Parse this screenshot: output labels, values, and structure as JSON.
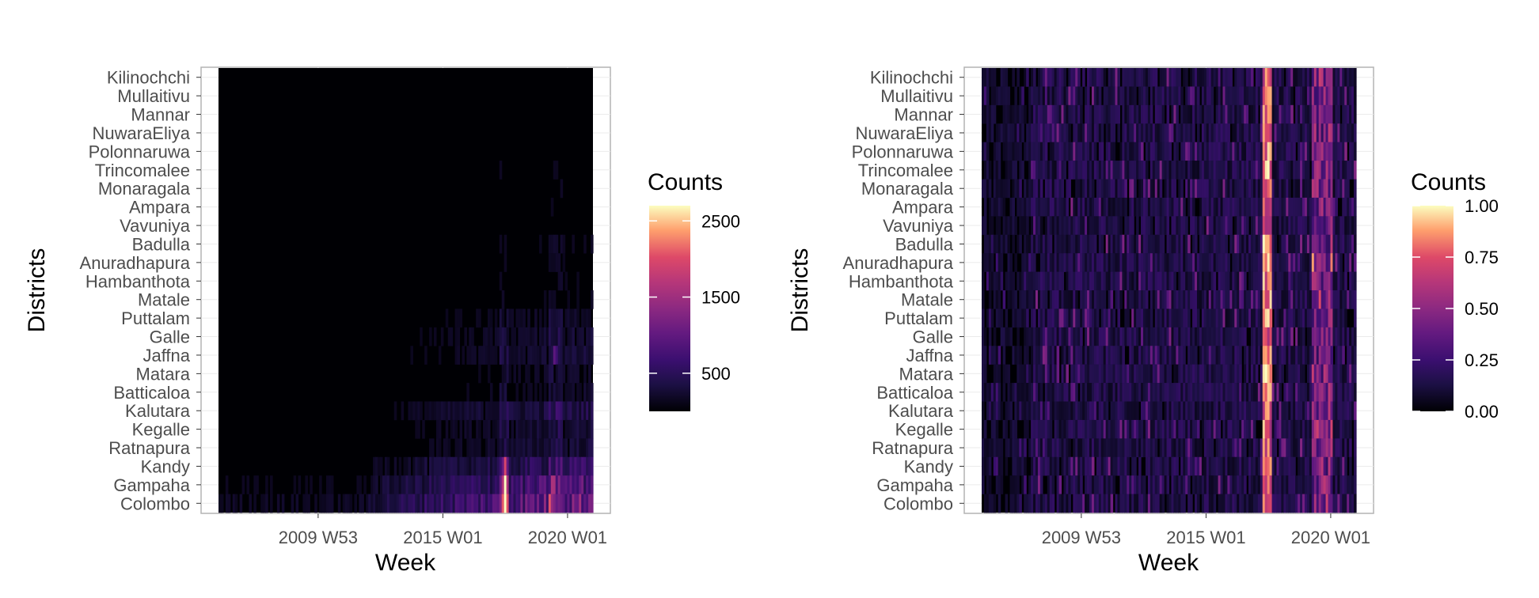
{
  "chart_data": [
    {
      "type": "heatmap",
      "xlabel": "Week",
      "ylabel": "Districts",
      "x_ticks": [
        "2009 W53",
        "2015 W01",
        "2020 W01"
      ],
      "x_range": [
        "2006 W01",
        "2021 W02"
      ],
      "y_categories_top_to_bottom": [
        "Kilinochchi",
        "Mullaitivu",
        "Mannar",
        "NuwaraEliya",
        "Polonnaruwa",
        "Trincomalee",
        "Monaragala",
        "Ampara",
        "Vavuniya",
        "Badulla",
        "Anuradhapura",
        "Hambanthota",
        "Matale",
        "Puttalam",
        "Galle",
        "Jaffna",
        "Matara",
        "Batticaloa",
        "Kalutara",
        "Kegalle",
        "Ratnapura",
        "Kandy",
        "Gampaha",
        "Colombo"
      ],
      "legend": {
        "title": "Counts",
        "range": [
          0,
          2700
        ],
        "ticks": [
          {
            "value": 500,
            "label": "500"
          },
          {
            "value": 1500,
            "label": "1500"
          },
          {
            "value": 2500,
            "label": "2500"
          }
        ]
      },
      "values": {
        "base_by_district_top_to_bottom": [
          5,
          5,
          8,
          12,
          10,
          20,
          18,
          15,
          14,
          25,
          22,
          22,
          25,
          40,
          50,
          55,
          40,
          40,
          80,
          60,
          60,
          120,
          180,
          250
        ],
        "hotspots": [
          {
            "week": "2017 W27",
            "district": "Colombo",
            "value": 2400
          },
          {
            "week": "2017 W27",
            "district": "Gampaha",
            "value": 1900
          },
          {
            "week": "2017 W27",
            "district": "Kandy",
            "value": 1100
          },
          {
            "week": "2019 W27",
            "district": "Colombo",
            "value": 900
          },
          {
            "week": "2019 W27",
            "district": "Jaffna",
            "value": 700
          },
          {
            "week": "2014 W27",
            "district": "Colombo",
            "value": 550
          }
        ]
      },
      "grid": true
    },
    {
      "type": "heatmap",
      "xlabel": "Week",
      "ylabel": "Districts",
      "x_ticks": [
        "2009 W53",
        "2015 W01",
        "2020 W01"
      ],
      "x_range": [
        "2006 W01",
        "2021 W02"
      ],
      "y_categories_top_to_bottom": [
        "Kilinochchi",
        "Mullaitivu",
        "Mannar",
        "NuwaraEliya",
        "Polonnaruwa",
        "Trincomalee",
        "Monaragala",
        "Ampara",
        "Vavuniya",
        "Badulla",
        "Anuradhapura",
        "Hambanthota",
        "Matale",
        "Puttalam",
        "Galle",
        "Jaffna",
        "Matara",
        "Batticaloa",
        "Kalutara",
        "Kegalle",
        "Ratnapura",
        "Kandy",
        "Gampaha",
        "Colombo"
      ],
      "legend": {
        "title": "Counts",
        "range": [
          0,
          1
        ],
        "ticks": [
          {
            "value": 0,
            "label": "0.00"
          },
          {
            "value": 0.25,
            "label": "0.25"
          },
          {
            "value": 0.5,
            "label": "0.50"
          },
          {
            "value": 0.75,
            "label": "0.75"
          },
          {
            "value": 1,
            "label": "1.00"
          }
        ]
      },
      "values": {
        "peak_weeks": [
          {
            "week": "2017 W27",
            "value": 1.0
          },
          {
            "week": "2019 W27",
            "value": 0.85
          },
          {
            "week": "2010 W14",
            "value": 0.7
          }
        ]
      },
      "grid": true
    }
  ]
}
